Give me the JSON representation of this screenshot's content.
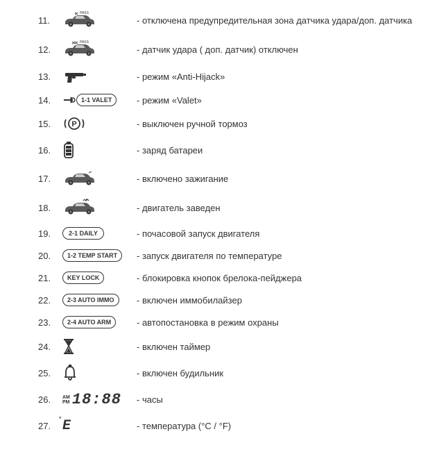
{
  "rows": [
    {
      "num": "11.",
      "icon": "car-pass1",
      "desc": "- отключена предупредительная зона  датчика удара/доп. датчика"
    },
    {
      "num": "12.",
      "icon": "car-pass2",
      "desc": "- датчик удара ( доп. датчик) отключен"
    },
    {
      "num": "13.",
      "icon": "gun",
      "desc": "- режим «Anti-Hijack»"
    },
    {
      "num": "14.",
      "icon": "valet",
      "pill_text": "1-1 VALET",
      "desc": "- режим «Valet»"
    },
    {
      "num": "15.",
      "icon": "parking",
      "desc": "- выключен ручной тормоз"
    },
    {
      "num": "16.",
      "icon": "battery",
      "desc": "- заряд батареи"
    },
    {
      "num": "17.",
      "icon": "car-ignition",
      "desc": "- включено зажигание"
    },
    {
      "num": "18.",
      "icon": "car-engine",
      "desc": "- двигатель заведен"
    },
    {
      "num": "19.",
      "icon": "pill",
      "pill_text": "2-1 DAILY",
      "desc": "- почасовой запуск двигателя"
    },
    {
      "num": "20.",
      "icon": "pill",
      "pill_text": "1-2 TEMP START",
      "desc": "- запуск двигателя по температуре"
    },
    {
      "num": "21.",
      "icon": "pill",
      "pill_text": "KEY LOCK",
      "desc": "- блокировка кнопок брелока-пейджера"
    },
    {
      "num": "22.",
      "icon": "pill",
      "pill_text": "2-3 AUTO IMMO",
      "desc": "- включен иммобилайзер"
    },
    {
      "num": "23.",
      "icon": "pill",
      "pill_text": "2-4 AUTO ARM",
      "desc": "- автопостановка в режим охраны"
    },
    {
      "num": "24.",
      "icon": "hourglass",
      "desc": "- включен таймер"
    },
    {
      "num": "25.",
      "icon": "bell",
      "desc": "- включен будильник"
    },
    {
      "num": "26.",
      "icon": "clock",
      "desc": "- часы"
    },
    {
      "num": "27.",
      "icon": "temp",
      "desc": "- температура (°C / °F)"
    }
  ],
  "colors": {
    "text": "#333333",
    "icon": "#4a4a4a",
    "bg": "#ffffff"
  }
}
